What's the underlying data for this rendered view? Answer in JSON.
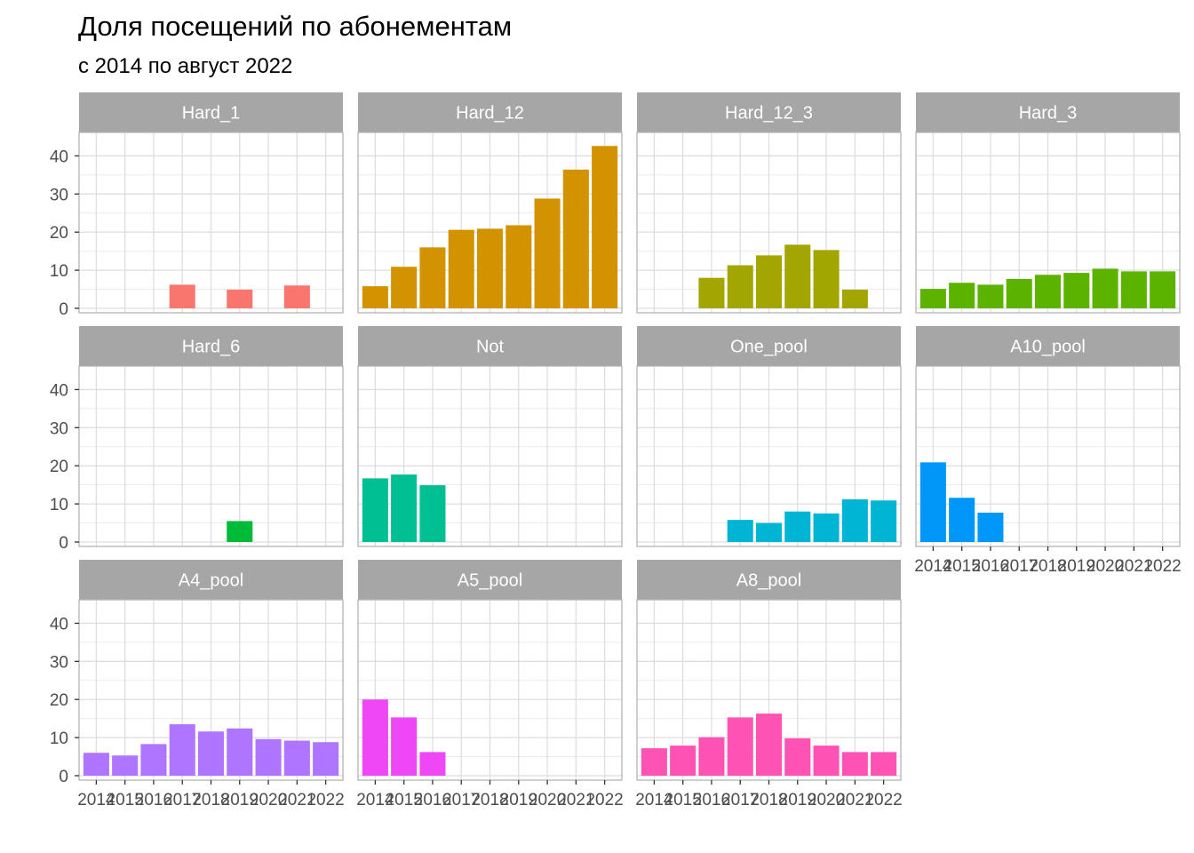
{
  "chart_data": {
    "type": "bar",
    "layout": "facet-grid",
    "title": "Доля посещений по абонементам",
    "subtitle": "с 2014 по август 2022",
    "xlabel": "",
    "ylabel": "",
    "categories": [
      "2014",
      "2015",
      "2016",
      "2017",
      "2018",
      "2019",
      "2020",
      "2021",
      "2022"
    ],
    "ylim": [
      0,
      45
    ],
    "yticks": [
      "0",
      "10",
      "20",
      "30",
      "40"
    ],
    "grid": true,
    "legend": "none",
    "series": [
      {
        "name": "Hard_1",
        "color": "#F8766D",
        "values": [
          null,
          null,
          null,
          6.2,
          null,
          4.9,
          null,
          6.0,
          null
        ]
      },
      {
        "name": "Hard_12",
        "color": "#D39200",
        "values": [
          5.8,
          10.9,
          16.0,
          20.6,
          20.9,
          21.8,
          28.8,
          36.4,
          42.6
        ]
      },
      {
        "name": "Hard_12_3",
        "color": "#A3A500",
        "values": [
          null,
          null,
          8.0,
          11.3,
          13.9,
          16.7,
          15.3,
          4.9,
          null
        ]
      },
      {
        "name": "Hard_3",
        "color": "#5BB300",
        "values": [
          5.1,
          6.7,
          6.2,
          7.7,
          8.8,
          9.3,
          10.4,
          9.7,
          9.7
        ]
      },
      {
        "name": "Hard_6",
        "color": "#00BA38",
        "values": [
          null,
          null,
          null,
          null,
          null,
          5.5,
          null,
          null,
          null
        ]
      },
      {
        "name": "Not",
        "color": "#00BF93",
        "values": [
          16.7,
          17.7,
          14.9,
          null,
          null,
          null,
          null,
          null,
          null
        ]
      },
      {
        "name": "One_pool",
        "color": "#00B5D4",
        "values": [
          null,
          null,
          null,
          5.8,
          5.0,
          8.0,
          7.5,
          11.2,
          10.9
        ]
      },
      {
        "name": "A10_pool",
        "color": "#0097F9",
        "values": [
          20.9,
          11.6,
          7.7,
          null,
          null,
          null,
          null,
          null,
          null
        ]
      },
      {
        "name": "A4_pool",
        "color": "#AF75FF",
        "values": [
          6.0,
          5.3,
          8.3,
          13.5,
          11.6,
          12.4,
          9.6,
          9.2,
          8.8
        ]
      },
      {
        "name": "A5_pool",
        "color": "#EF47F6",
        "values": [
          20.0,
          15.3,
          6.2,
          null,
          null,
          null,
          null,
          null,
          null
        ]
      },
      {
        "name": "A8_pool",
        "color": "#FF52B5",
        "values": [
          7.2,
          7.9,
          10.1,
          15.3,
          16.3,
          9.8,
          7.9,
          6.2,
          6.2
        ]
      }
    ]
  }
}
